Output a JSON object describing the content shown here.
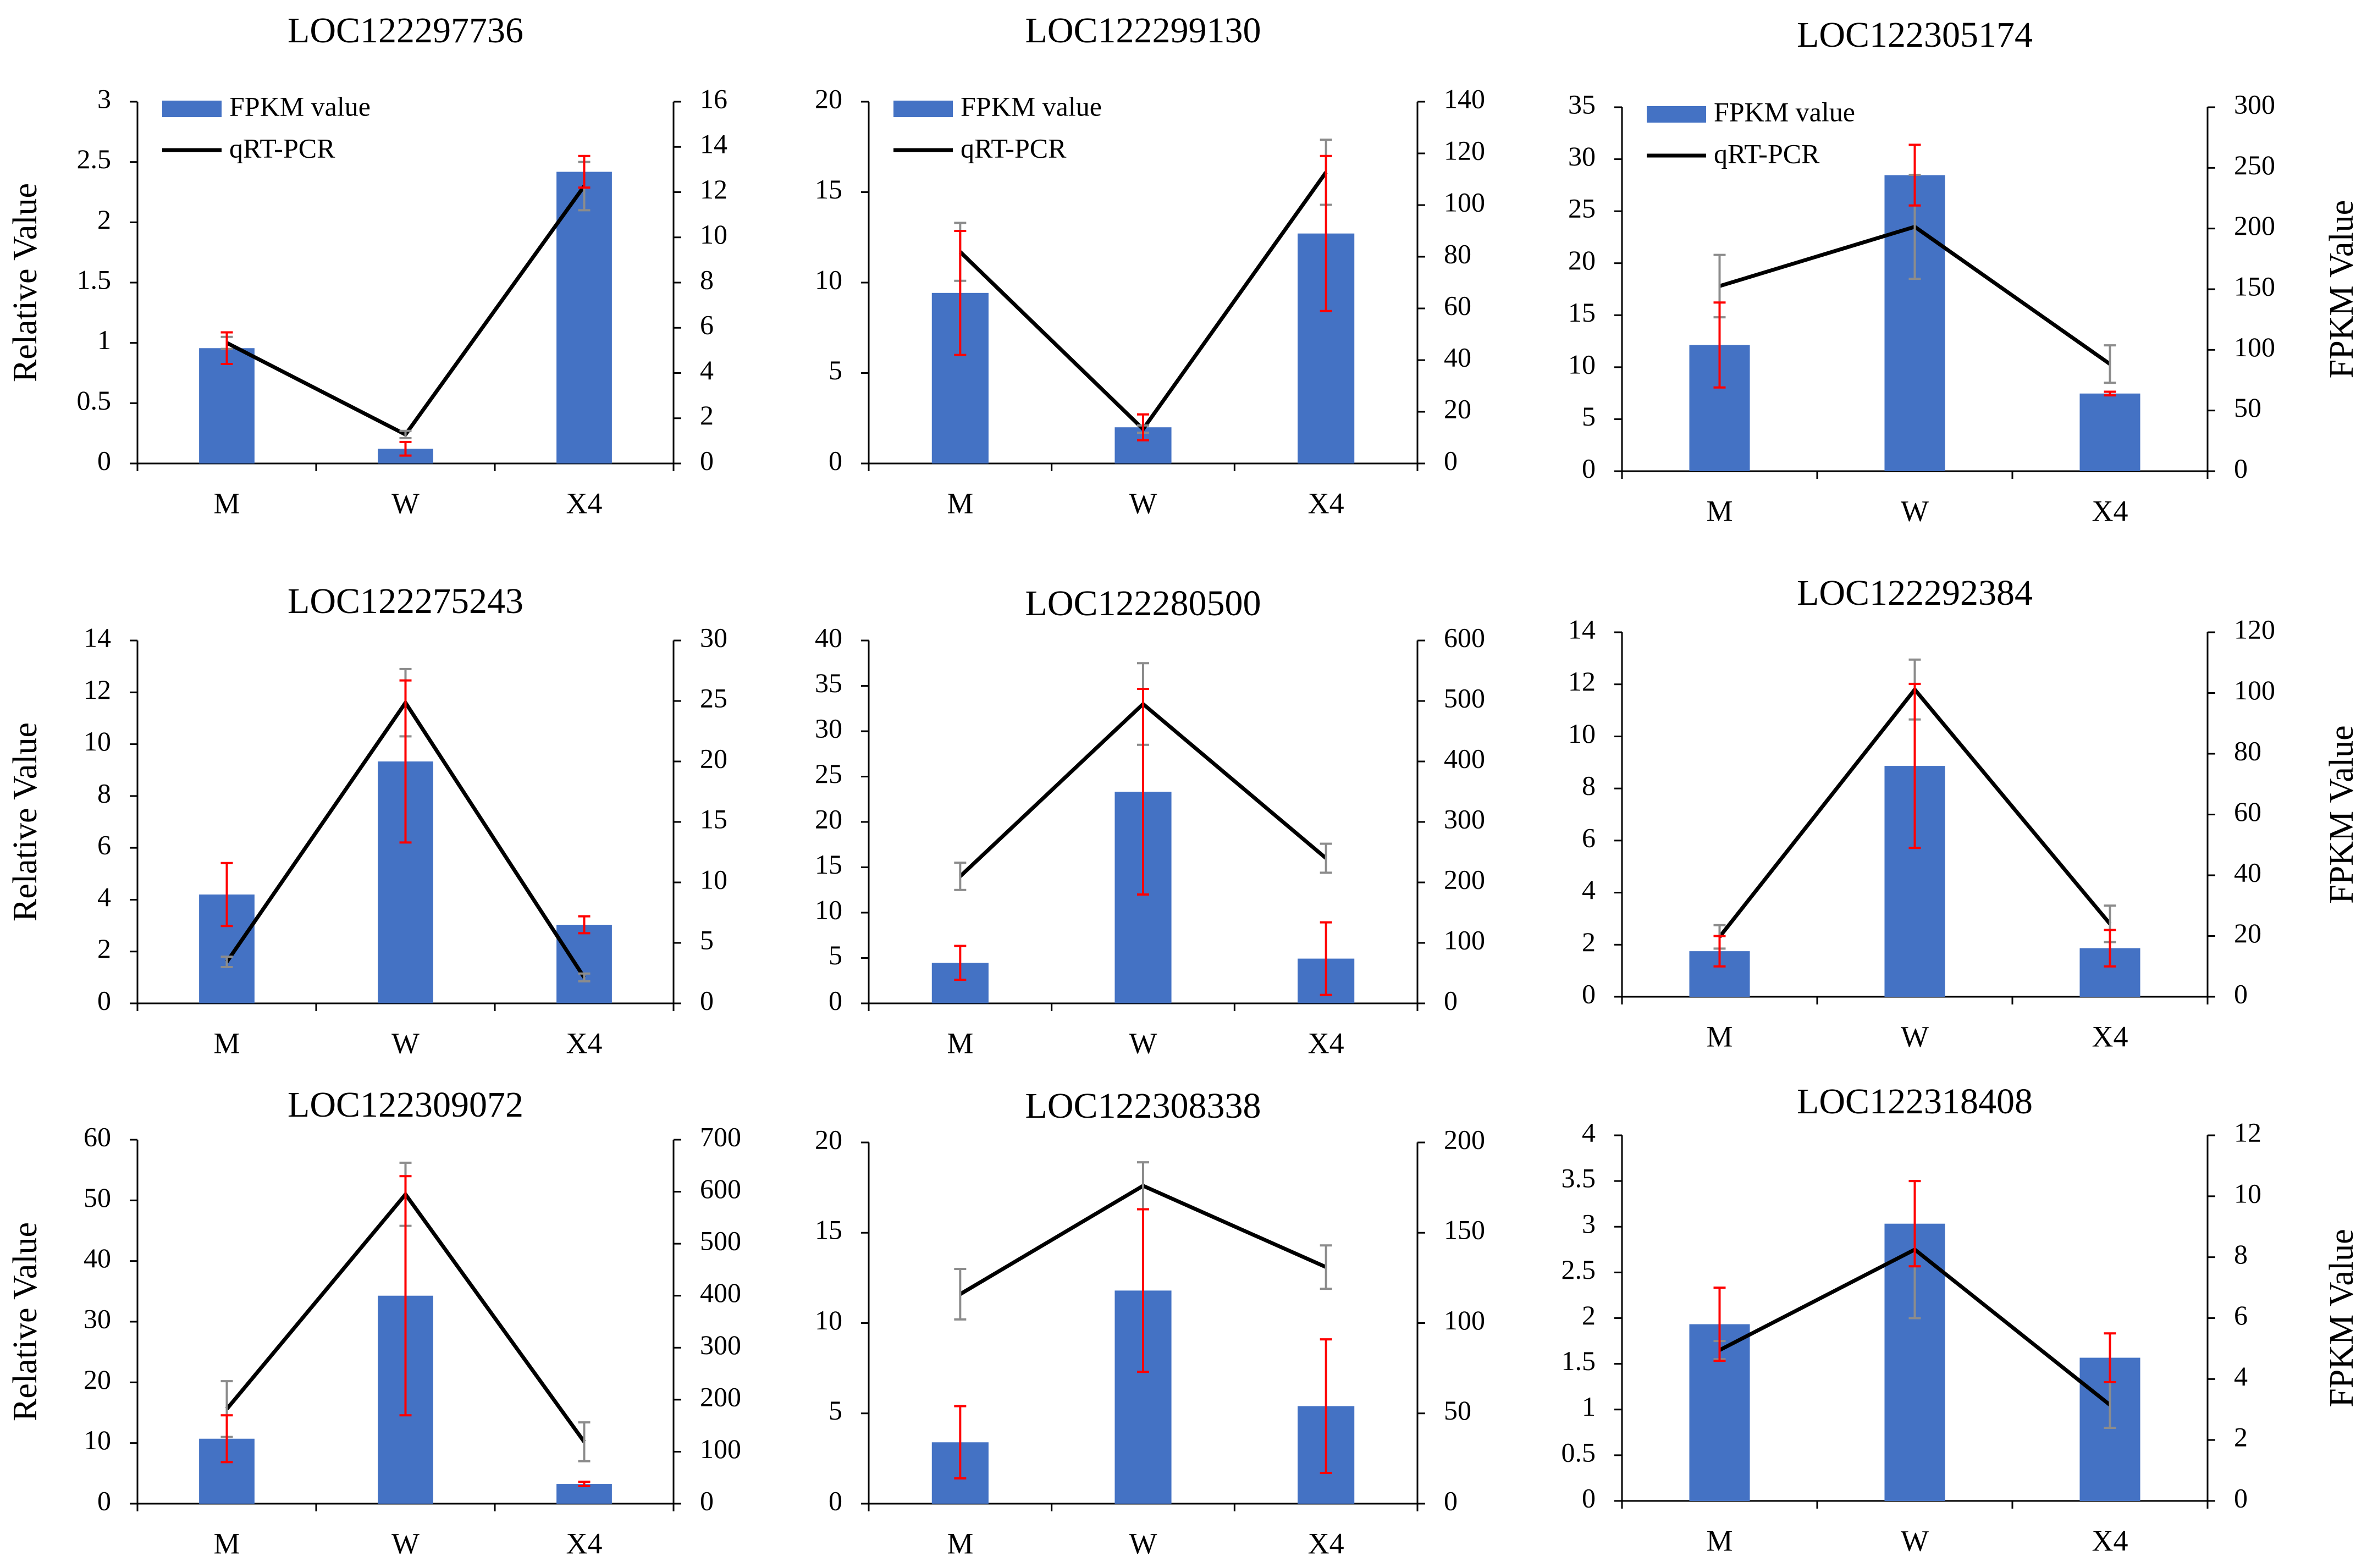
{
  "figure": {
    "colors": {
      "bar": "#4472c4",
      "line": "#000000",
      "error_bar_fpkm": "#ff0000",
      "error_bar_qrt": "#8c8c8c"
    }
  },
  "chart_data": [
    {
      "type": "bar",
      "title": "LOC122297736",
      "categories": [
        "M",
        "W",
        "X4"
      ],
      "legend": [
        "FPKM value",
        "qRT-PCR"
      ],
      "ylabel": "Relative Value",
      "y2label": "",
      "left_ticks": [
        "0",
        "0.5",
        "1",
        "1.5",
        "2",
        "2.5",
        "3"
      ],
      "ylim": [
        0,
        3
      ],
      "right_ticks": [
        "0",
        "2",
        "4",
        "6",
        "8",
        "10",
        "12",
        "14",
        "16"
      ],
      "y2lim": [
        0,
        16
      ],
      "series": [
        {
          "name": "FPKM value",
          "axis": "right",
          "values": [
            5.1,
            0.65,
            12.9
          ],
          "errors": [
            0.7,
            0.3,
            0.7
          ]
        },
        {
          "name": "qRT-PCR",
          "axis": "left",
          "values": [
            1.0,
            0.24,
            2.3
          ],
          "errors": [
            0.05,
            0.03,
            0.2
          ]
        }
      ]
    },
    {
      "type": "bar",
      "title": "LOC122299130",
      "categories": [
        "M",
        "W",
        "X4"
      ],
      "legend": [
        "FPKM value",
        "qRT-PCR"
      ],
      "ylabel": "",
      "y2label": "",
      "left_ticks": [
        "0",
        "5",
        "10",
        "15",
        "20"
      ],
      "ylim": [
        0,
        20
      ],
      "right_ticks": [
        "0",
        "20",
        "40",
        "60",
        "80",
        "100",
        "120",
        "140"
      ],
      "y2lim": [
        0,
        140
      ],
      "series": [
        {
          "name": "FPKM value",
          "axis": "right",
          "values": [
            66,
            14,
            89
          ],
          "errors": [
            24,
            5,
            30
          ]
        },
        {
          "name": "qRT-PCR",
          "axis": "left",
          "values": [
            11.7,
            1.9,
            16.1
          ],
          "errors": [
            1.6,
            0.2,
            1.8
          ]
        }
      ]
    },
    {
      "type": "bar",
      "title": "LOC122305174",
      "categories": [
        "M",
        "W",
        "X4"
      ],
      "legend": [
        "FPKM value",
        "qRT-PCR"
      ],
      "ylabel": "",
      "y2label": "FPKM Value",
      "left_ticks": [
        "0",
        "5",
        "10",
        "15",
        "20",
        "25",
        "30",
        "35"
      ],
      "ylim": [
        0,
        35
      ],
      "right_ticks": [
        "0",
        "50",
        "100",
        "150",
        "200",
        "250",
        "300"
      ],
      "y2lim": [
        0,
        300
      ],
      "series": [
        {
          "name": "FPKM value",
          "axis": "right",
          "values": [
            104,
            244,
            64
          ],
          "errors": [
            35,
            25,
            1.5
          ]
        },
        {
          "name": "qRT-PCR",
          "axis": "left",
          "values": [
            17.8,
            23.5,
            10.3
          ],
          "errors": [
            3,
            5,
            1.8
          ]
        }
      ]
    },
    {
      "type": "bar",
      "title": "LOC122275243",
      "categories": [
        "M",
        "W",
        "X4"
      ],
      "legend": [],
      "ylabel": "Relative Value",
      "y2label": "",
      "left_ticks": [
        "0",
        "2",
        "4",
        "6",
        "8",
        "10",
        "12",
        "14"
      ],
      "ylim": [
        0,
        14
      ],
      "right_ticks": [
        "0",
        "5",
        "10",
        "15",
        "20",
        "25",
        "30"
      ],
      "y2lim": [
        0,
        30
      ],
      "series": [
        {
          "name": "FPKM value",
          "axis": "right",
          "values": [
            9,
            20,
            6.5
          ],
          "errors": [
            2.6,
            6.7,
            0.7
          ]
        },
        {
          "name": "qRT-PCR",
          "axis": "left",
          "values": [
            1.6,
            11.6,
            1.0
          ],
          "errors": [
            0.2,
            1.3,
            0.15
          ]
        }
      ]
    },
    {
      "type": "bar",
      "title": "LOC122280500",
      "categories": [
        "M",
        "W",
        "X4"
      ],
      "legend": [],
      "ylabel": "",
      "y2label": "",
      "left_ticks": [
        "0",
        "5",
        "10",
        "15",
        "20",
        "25",
        "30",
        "35",
        "40"
      ],
      "ylim": [
        0,
        40
      ],
      "right_ticks": [
        "0",
        "100",
        "200",
        "300",
        "400",
        "500",
        "600"
      ],
      "y2lim": [
        0,
        600
      ],
      "series": [
        {
          "name": "FPKM value",
          "axis": "right",
          "values": [
            67,
            350,
            74
          ],
          "errors": [
            28,
            170,
            60
          ]
        },
        {
          "name": "qRT-PCR",
          "axis": "left",
          "values": [
            14,
            33,
            16
          ],
          "errors": [
            1.5,
            4.5,
            1.6
          ]
        }
      ]
    },
    {
      "type": "bar",
      "title": "LOC122292384",
      "categories": [
        "M",
        "W",
        "X4"
      ],
      "legend": [],
      "ylabel": "",
      "y2label": "FPKM Value",
      "left_ticks": [
        "0",
        "2",
        "4",
        "6",
        "8",
        "10",
        "12",
        "14"
      ],
      "ylim": [
        0,
        14
      ],
      "right_ticks": [
        "0",
        "20",
        "40",
        "60",
        "80",
        "100",
        "120"
      ],
      "y2lim": [
        0,
        120
      ],
      "series": [
        {
          "name": "FPKM value",
          "axis": "right",
          "values": [
            15,
            76,
            16
          ],
          "errors": [
            5,
            27,
            6
          ]
        },
        {
          "name": "qRT-PCR",
          "axis": "left",
          "values": [
            2.3,
            11.8,
            2.8
          ],
          "errors": [
            0.45,
            1.15,
            0.7
          ]
        }
      ]
    },
    {
      "type": "bar",
      "title": "LOC122309072",
      "categories": [
        "M",
        "W",
        "X4"
      ],
      "legend": [],
      "ylabel": "Relative Value",
      "y2label": "",
      "left_ticks": [
        "0",
        "10",
        "20",
        "30",
        "40",
        "50",
        "60"
      ],
      "ylim": [
        0,
        60
      ],
      "right_ticks": [
        "0",
        "100",
        "200",
        "300",
        "400",
        "500",
        "600",
        "700"
      ],
      "y2lim": [
        0,
        700
      ],
      "series": [
        {
          "name": "FPKM value",
          "axis": "right",
          "values": [
            125,
            400,
            38
          ],
          "errors": [
            45,
            230,
            4
          ]
        },
        {
          "name": "qRT-PCR",
          "axis": "left",
          "values": [
            15.6,
            51,
            10.2
          ],
          "errors": [
            4.6,
            5.2,
            3.2
          ]
        }
      ]
    },
    {
      "type": "bar",
      "title": "LOC122308338",
      "categories": [
        "M",
        "W",
        "X4"
      ],
      "legend": [],
      "ylabel": "",
      "y2label": "",
      "left_ticks": [
        "0",
        "5",
        "10",
        "15",
        "20"
      ],
      "ylim": [
        0,
        20
      ],
      "right_ticks": [
        "0",
        "50",
        "100",
        "150",
        "200"
      ],
      "y2lim": [
        0,
        200
      ],
      "series": [
        {
          "name": "FPKM value",
          "axis": "right",
          "values": [
            34,
            118,
            54
          ],
          "errors": [
            20,
            45,
            37
          ]
        },
        {
          "name": "qRT-PCR",
          "axis": "left",
          "values": [
            11.6,
            17.6,
            13.1
          ],
          "errors": [
            1.4,
            1.3,
            1.2
          ]
        }
      ]
    },
    {
      "type": "bar",
      "title": "LOC122318408",
      "categories": [
        "M",
        "W",
        "X4"
      ],
      "legend": [],
      "ylabel": "",
      "y2label": "FPKM Value",
      "left_ticks": [
        "0",
        "0.5",
        "1",
        "1.5",
        "2",
        "2.5",
        "3",
        "3.5",
        "4"
      ],
      "ylim": [
        0,
        4
      ],
      "right_ticks": [
        "0",
        "2",
        "4",
        "6",
        "8",
        "10",
        "12"
      ],
      "y2lim": [
        0,
        12
      ],
      "series": [
        {
          "name": "FPKM value",
          "axis": "right",
          "values": [
            5.8,
            9.1,
            4.7
          ],
          "errors": [
            1.2,
            1.4,
            0.8
          ]
        },
        {
          "name": "qRT-PCR",
          "axis": "left",
          "values": [
            1.65,
            2.75,
            1.05
          ],
          "errors": [
            0.1,
            0.75,
            0.25
          ]
        }
      ]
    }
  ]
}
